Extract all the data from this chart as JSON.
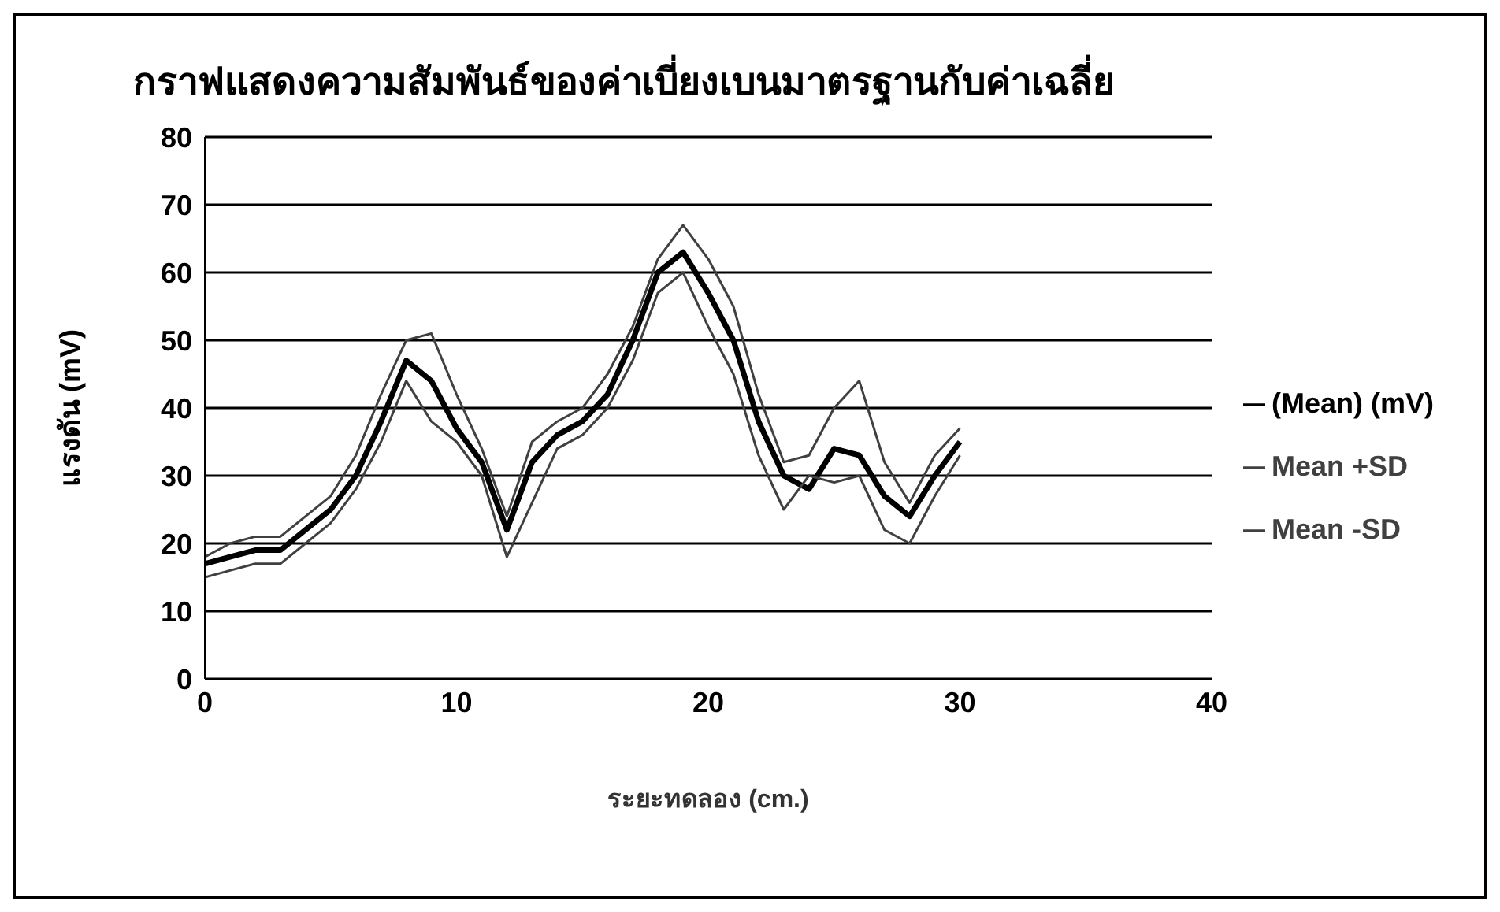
{
  "chart_data": {
    "type": "line",
    "title": "กราฟแสดงความสัมพันธ์ของค่าเบี่ยงเบนมาตรฐานกับค่าเฉลี่ย",
    "xlabel": "ระยะทดลอง (cm.)",
    "ylabel": "แรงดัน (mV)",
    "x": [
      0,
      1,
      2,
      3,
      4,
      5,
      6,
      7,
      8,
      9,
      10,
      11,
      12,
      13,
      14,
      15,
      16,
      17,
      18,
      19,
      20,
      21,
      22,
      23,
      24,
      25,
      26,
      27,
      28,
      29,
      30
    ],
    "series": [
      {
        "name": "(Mean) (mV)",
        "color": "#000000",
        "values": [
          17,
          18,
          19,
          19,
          22,
          25,
          30,
          38,
          47,
          44,
          37,
          32,
          22,
          32,
          36,
          38,
          42,
          50,
          60,
          63,
          57,
          50,
          38,
          30,
          28,
          34,
          33,
          27,
          24,
          30,
          35
        ]
      },
      {
        "name": "Mean +SD",
        "color": "#404040",
        "values": [
          18,
          20,
          21,
          21,
          24,
          27,
          33,
          42,
          50,
          51,
          42,
          34,
          24,
          35,
          38,
          40,
          45,
          52,
          62,
          67,
          62,
          55,
          42,
          32,
          33,
          40,
          44,
          32,
          26,
          33,
          37
        ]
      },
      {
        "name": "Mean -SD",
        "color": "#404040",
        "values": [
          15,
          16,
          17,
          17,
          20,
          23,
          28,
          35,
          44,
          38,
          35,
          30,
          18,
          26,
          34,
          36,
          40,
          47,
          57,
          60,
          52,
          45,
          33,
          25,
          30,
          29,
          30,
          22,
          20,
          27,
          33
        ]
      }
    ],
    "xlim": [
      0,
      40
    ],
    "xticks": [
      0,
      10,
      20,
      30,
      40
    ],
    "ylim": [
      0,
      80
    ],
    "yticks": [
      0,
      10,
      20,
      30,
      40,
      50,
      60,
      70,
      80
    ],
    "grid": "y",
    "legend": "right",
    "marker": "none",
    "line_style": "solid"
  }
}
